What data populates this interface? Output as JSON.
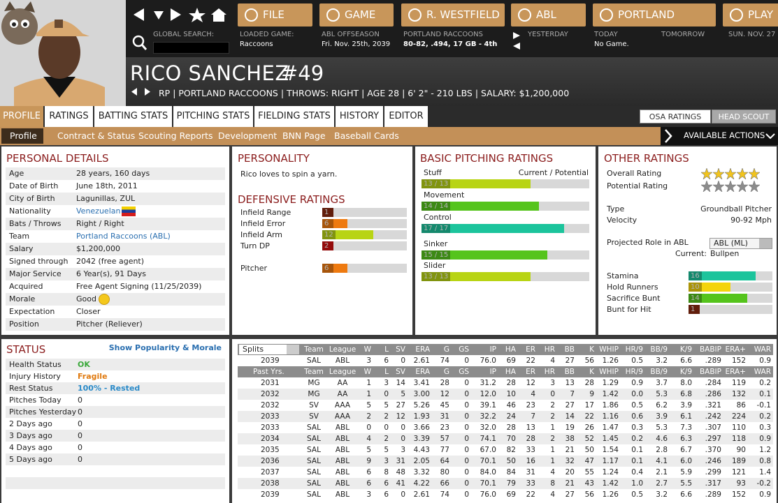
{
  "nav": {
    "buttons": [
      "FILE",
      "GAME",
      "R. WESTFIELD",
      "ABL",
      "PORTLAND",
      "PLAY"
    ]
  },
  "info": {
    "search_label": "GLOBAL SEARCH:",
    "loaded_game": {
      "label": "LOADED GAME:",
      "value": "Raccoons"
    },
    "league_status": {
      "label": "ABL OFFSEASON",
      "value": "Fri. Nov. 25th, 2039"
    },
    "team_record": {
      "label": "PORTLAND RACCOONS",
      "value": "80-82, .494, 17 GB - 4th"
    },
    "yesterday": "YESTERDAY",
    "today": {
      "label": "TODAY",
      "value": "No Game."
    },
    "tomorrow": "TOMORROW",
    "next_day": "SUN. NOV. 27"
  },
  "player": {
    "name": "RICO SANCHEZ",
    "number": "#49",
    "summary": "RP | PORTLAND RACCOONS | THROWS: RIGHT | AGE 28 | 6' 2\" - 210 LBS | SALARY: $1,200,000"
  },
  "tabs": [
    "PROFILE",
    "RATINGS",
    "BATTING STATS",
    "PITCHING STATS",
    "FIELDING STATS",
    "HISTORY",
    "EDITOR"
  ],
  "scout_toggle": [
    "OSA RATINGS",
    "HEAD SCOUT"
  ],
  "subtabs": [
    "Profile",
    "Contract & Status",
    "Scouting Reports",
    "Development",
    "BNN Page",
    "Baseball Cards"
  ],
  "actions": "AVAILABLE ACTIONS",
  "personal_details": {
    "title": "PERSONAL DETAILS",
    "rows": [
      {
        "label": "Age",
        "value": "28 years, 160 days"
      },
      {
        "label": "Date of Birth",
        "value": "June 18th, 2011"
      },
      {
        "label": "City of Birth",
        "value": "Lagunillas, ZUL"
      },
      {
        "label": "Nationality",
        "value": "Venezuelan",
        "color": "#2a6fb0"
      },
      {
        "label": "Bats / Throws",
        "value": "Right / Right"
      },
      {
        "label": "Team",
        "value": "Portland Raccoons (ABL)",
        "color": "#2a6fb0"
      },
      {
        "label": "Salary",
        "value": "$1,200,000"
      },
      {
        "label": "Signed through",
        "value": "2042 (free agent)"
      },
      {
        "label": "Major Service",
        "value": "6 Year(s), 91 Days"
      },
      {
        "label": "Acquired",
        "value": "Free Agent Signing (11/25/2039)"
      },
      {
        "label": "Morale",
        "value": "Good"
      },
      {
        "label": "Expectation",
        "value": "Closer"
      },
      {
        "label": "Position",
        "value": "Pitcher (Reliever)"
      }
    ]
  },
  "personality": {
    "title": "PERSONALITY",
    "text": "Rico loves to spin a yarn."
  },
  "rating_lim": [
    0,
    20
  ],
  "defensive_ratings": {
    "title": "DEFENSIVE RATINGS",
    "rows": [
      {
        "label": "Infield Range",
        "value": 1,
        "color": "#8a2a10"
      },
      {
        "label": "Infield Error",
        "value": 6,
        "color": "#ee7a10"
      },
      {
        "label": "Infield Arm",
        "value": 12,
        "color": "#b8d414"
      },
      {
        "label": "Turn DP",
        "value": 2,
        "color": "#d41010"
      }
    ],
    "position": {
      "label": "Pitcher",
      "value": 6,
      "color": "#ee7a10"
    }
  },
  "basic_pitching": {
    "title": "BASIC PITCHING RATINGS",
    "header": "Current / Potential",
    "rows": [
      {
        "label": "Stuff",
        "current": 13,
        "potential": 13,
        "value_label": "13 / 13",
        "color": "#b8d414"
      },
      {
        "label": "Movement",
        "current": 14,
        "potential": 14,
        "value_label": "14 / 14",
        "color": "#55c41c"
      },
      {
        "label": "Control",
        "current": 17,
        "potential": 17,
        "value_label": "17 / 17",
        "color": "#1cc49c"
      },
      {
        "label": "Sinker",
        "current": 15,
        "potential": 15,
        "value_label": "15 / 15",
        "color": "#55c41c"
      },
      {
        "label": "Slider",
        "current": 13,
        "potential": 13,
        "value_label": "13 / 13",
        "color": "#b8d414"
      }
    ]
  },
  "other_ratings": {
    "title": "OTHER RATINGS",
    "stars": [
      {
        "label": "Overall Rating",
        "value": 5,
        "color": "#f2c41c"
      },
      {
        "label": "Potential Rating",
        "value": 5,
        "color": "#8c8c8c"
      }
    ],
    "info": [
      {
        "label": "Type",
        "value": "Groundball Pitcher"
      },
      {
        "label": "Velocity",
        "value": "90-92 Mph"
      }
    ],
    "projected_role": {
      "label": "Projected Role in ABL",
      "value": "ABL (ML)",
      "current_label": "Current:",
      "current": "Bullpen"
    },
    "ratings": [
      {
        "label": "Stamina",
        "value": 16,
        "color": "#1cc49c"
      },
      {
        "label": "Hold Runners",
        "value": 10,
        "color": "#f4d40c"
      },
      {
        "label": "Sacrifice Bunt",
        "value": 14,
        "color": "#55c41c"
      },
      {
        "label": "Bunt for Hit",
        "value": 1,
        "color": "#8a2a10"
      }
    ]
  },
  "status": {
    "title": "STATUS",
    "link": "Show Popularity & Morale",
    "rows": [
      {
        "label": "Health Status",
        "value": "OK",
        "color": "#3aa83a"
      },
      {
        "label": "Injury History",
        "value": "Fragile",
        "color": "#e07a10"
      },
      {
        "label": "Rest Status",
        "value": "100% - Rested",
        "color": "#2a8ac8"
      },
      {
        "label": "Pitches Today",
        "value": 0
      },
      {
        "label": "Pitches Yesterday",
        "value": 0
      },
      {
        "label": "2 Days ago",
        "value": 0
      },
      {
        "label": "3 Days ago",
        "value": 0
      },
      {
        "label": "4 Days ago",
        "value": 0
      },
      {
        "label": "5 Days ago",
        "value": 0
      }
    ]
  },
  "stats": {
    "split_select": "Splits",
    "columns": [
      "Team",
      "League",
      "W",
      "L",
      "SV",
      "ERA",
      "G",
      "GS",
      "IP",
      "HA",
      "ER",
      "HR",
      "BB",
      "K",
      "WHIP",
      "HR/9",
      "BB/9",
      "K/9",
      "BABIP",
      "ERA+",
      "WAR"
    ],
    "current_row": [
      "2039",
      "SAL",
      "ABL",
      "3",
      "6",
      "0",
      "2.61",
      "74",
      "0",
      "76.0",
      "69",
      "22",
      "4",
      "27",
      "56",
      "1.26",
      "0.5",
      "3.2",
      "6.6",
      ".289",
      "152",
      "0.9"
    ],
    "past_label": "Past Yrs.",
    "rows": [
      [
        "2031",
        "MG",
        "AA",
        "1",
        "3",
        "14",
        "3.41",
        "28",
        "0",
        "31.2",
        "28",
        "12",
        "3",
        "13",
        "28",
        "1.29",
        "0.9",
        "3.7",
        "8.0",
        ".284",
        "119",
        "0.2"
      ],
      [
        "2032",
        "MG",
        "AA",
        "1",
        "0",
        "5",
        "3.00",
        "12",
        "0",
        "12.0",
        "10",
        "4",
        "0",
        "7",
        "9",
        "1.42",
        "0.0",
        "5.3",
        "6.8",
        ".286",
        "132",
        "0.1"
      ],
      [
        "2032",
        "SV",
        "AAA",
        "5",
        "5",
        "27",
        "5.26",
        "45",
        "0",
        "39.1",
        "46",
        "23",
        "2",
        "27",
        "17",
        "1.86",
        "0.5",
        "6.2",
        "3.9",
        ".321",
        "86",
        "-0.1"
      ],
      [
        "2033",
        "SV",
        "AAA",
        "2",
        "2",
        "12",
        "1.93",
        "31",
        "0",
        "32.2",
        "24",
        "7",
        "2",
        "14",
        "22",
        "1.16",
        "0.6",
        "3.9",
        "6.1",
        ".242",
        "224",
        "0.2"
      ],
      [
        "2033",
        "SAL",
        "ABL",
        "0",
        "0",
        "0",
        "3.66",
        "23",
        "0",
        "32.0",
        "28",
        "13",
        "1",
        "19",
        "26",
        "1.47",
        "0.3",
        "5.3",
        "7.3",
        ".307",
        "110",
        "0.3"
      ],
      [
        "2034",
        "SAL",
        "ABL",
        "4",
        "2",
        "0",
        "3.39",
        "57",
        "0",
        "74.1",
        "70",
        "28",
        "2",
        "38",
        "52",
        "1.45",
        "0.2",
        "4.6",
        "6.3",
        ".297",
        "118",
        "0.9"
      ],
      [
        "2035",
        "SAL",
        "ABL",
        "5",
        "5",
        "3",
        "4.43",
        "77",
        "0",
        "67.0",
        "82",
        "33",
        "1",
        "21",
        "50",
        "1.54",
        "0.1",
        "2.8",
        "6.7",
        ".370",
        "90",
        "1.2"
      ],
      [
        "2036",
        "SAL",
        "ABL",
        "9",
        "3",
        "31",
        "2.05",
        "64",
        "0",
        "70.1",
        "50",
        "16",
        "1",
        "32",
        "47",
        "1.17",
        "0.1",
        "4.1",
        "6.0",
        ".246",
        "189",
        "0.8"
      ],
      [
        "2037",
        "SAL",
        "ABL",
        "6",
        "8",
        "48",
        "3.32",
        "80",
        "0",
        "84.0",
        "84",
        "31",
        "4",
        "20",
        "55",
        "1.24",
        "0.4",
        "2.1",
        "5.9",
        ".299",
        "121",
        "1.4"
      ],
      [
        "2038",
        "SAL",
        "ABL",
        "6",
        "6",
        "41",
        "4.22",
        "66",
        "0",
        "70.1",
        "79",
        "33",
        "8",
        "21",
        "43",
        "1.42",
        "1.0",
        "2.7",
        "5.5",
        ".317",
        "93",
        "-0.2"
      ],
      [
        "2039",
        "SAL",
        "ABL",
        "3",
        "6",
        "0",
        "2.61",
        "74",
        "0",
        "76.0",
        "69",
        "22",
        "4",
        "27",
        "56",
        "1.26",
        "0.5",
        "3.2",
        "6.6",
        ".289",
        "152",
        "0.9"
      ]
    ]
  }
}
